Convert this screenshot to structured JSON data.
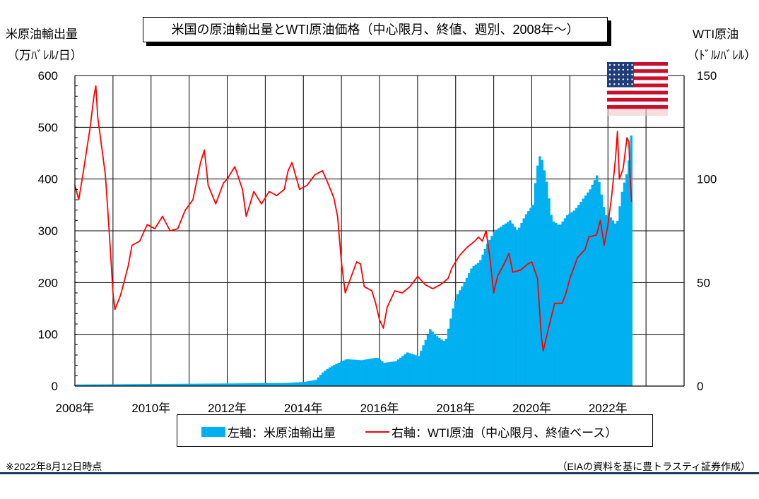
{
  "title": "米国の原油輸出量とWTI原油価格（中心限月、終値、週別、2008年～）",
  "left_axis": {
    "title_line1": "米原油輸出量",
    "title_line2": "（万ﾊﾞﾚﾙ/日）"
  },
  "right_axis": {
    "title_line1": "WTI原油",
    "title_line2": "（ﾄﾞﾙ/ﾊﾞﾚﾙ）"
  },
  "legend": {
    "bar_label": "左軸：米原油輸出量",
    "line_label": "右軸：WTI原油（中心限月、終値ベース）"
  },
  "footnote_left": "※2022年8月12日時点",
  "footnote_right": "（EIAの資料を基に豊トラスティ証券作成）",
  "flag_icon": "us-flag-icon",
  "colors": {
    "bars": "#00B0F0",
    "line": "#FF0000",
    "grid": "#000000"
  },
  "chart_data": {
    "type": "bar+line",
    "x_ticks": [
      "2008年",
      "2010年",
      "2012年",
      "2014年",
      "2016年",
      "2018年",
      "2020年",
      "2022年"
    ],
    "xlim": [
      2008,
      2024
    ],
    "left_ylim": [
      0,
      600
    ],
    "left_yticks": [
      "0",
      "100",
      "200",
      "300",
      "400",
      "500",
      "600"
    ],
    "right_ylim": [
      0,
      150
    ],
    "right_yticks": [
      "0",
      "50",
      "100",
      "150"
    ],
    "grid": true,
    "series": [
      {
        "name": "左軸：米原油輸出量",
        "axis": "left",
        "type": "bar",
        "points": [
          [
            2008.0,
            3
          ],
          [
            2010.0,
            4
          ],
          [
            2012.0,
            5
          ],
          [
            2013.5,
            6
          ],
          [
            2014.0,
            8
          ],
          [
            2014.3,
            12
          ],
          [
            2014.5,
            28
          ],
          [
            2014.7,
            38
          ],
          [
            2014.9,
            45
          ],
          [
            2015.1,
            52
          ],
          [
            2015.5,
            50
          ],
          [
            2015.9,
            55
          ],
          [
            2016.1,
            45
          ],
          [
            2016.4,
            48
          ],
          [
            2016.7,
            65
          ],
          [
            2017.0,
            58
          ],
          [
            2017.3,
            110
          ],
          [
            2017.5,
            95
          ],
          [
            2017.7,
            85
          ],
          [
            2017.9,
            150
          ],
          [
            2018.0,
            175
          ],
          [
            2018.2,
            200
          ],
          [
            2018.4,
            230
          ],
          [
            2018.6,
            240
          ],
          [
            2018.8,
            275
          ],
          [
            2019.0,
            300
          ],
          [
            2019.2,
            310
          ],
          [
            2019.4,
            320
          ],
          [
            2019.6,
            300
          ],
          [
            2019.8,
            330
          ],
          [
            2020.0,
            350
          ],
          [
            2020.1,
            420
          ],
          [
            2020.2,
            450
          ],
          [
            2020.35,
            400
          ],
          [
            2020.5,
            320
          ],
          [
            2020.7,
            310
          ],
          [
            2020.9,
            330
          ],
          [
            2021.1,
            340
          ],
          [
            2021.3,
            360
          ],
          [
            2021.5,
            380
          ],
          [
            2021.7,
            410
          ],
          [
            2021.9,
            330
          ],
          [
            2022.0,
            330
          ],
          [
            2022.2,
            310
          ],
          [
            2022.35,
            380
          ],
          [
            2022.5,
            420
          ],
          [
            2022.6,
            500
          ],
          [
            2022.62,
            495
          ]
        ]
      },
      {
        "name": "右軸：WTI原油（中心限月、終値ベース）",
        "axis": "right",
        "type": "line",
        "points": [
          [
            2008.0,
            97
          ],
          [
            2008.1,
            90
          ],
          [
            2008.2,
            101
          ],
          [
            2008.3,
            113
          ],
          [
            2008.4,
            125
          ],
          [
            2008.5,
            140
          ],
          [
            2008.55,
            145
          ],
          [
            2008.6,
            130
          ],
          [
            2008.7,
            116
          ],
          [
            2008.8,
            102
          ],
          [
            2008.9,
            75
          ],
          [
            2009.0,
            45
          ],
          [
            2009.05,
            37
          ],
          [
            2009.2,
            44
          ],
          [
            2009.4,
            58
          ],
          [
            2009.5,
            68
          ],
          [
            2009.7,
            70
          ],
          [
            2009.9,
            78
          ],
          [
            2010.1,
            76
          ],
          [
            2010.3,
            82
          ],
          [
            2010.5,
            75
          ],
          [
            2010.7,
            76
          ],
          [
            2010.9,
            85
          ],
          [
            2011.1,
            90
          ],
          [
            2011.3,
            108
          ],
          [
            2011.4,
            114
          ],
          [
            2011.5,
            97
          ],
          [
            2011.7,
            88
          ],
          [
            2011.9,
            98
          ],
          [
            2012.0,
            100
          ],
          [
            2012.2,
            106
          ],
          [
            2012.4,
            95
          ],
          [
            2012.5,
            82
          ],
          [
            2012.7,
            94
          ],
          [
            2012.9,
            88
          ],
          [
            2013.1,
            94
          ],
          [
            2013.3,
            92
          ],
          [
            2013.5,
            95
          ],
          [
            2013.6,
            104
          ],
          [
            2013.7,
            108
          ],
          [
            2013.9,
            95
          ],
          [
            2014.1,
            97
          ],
          [
            2014.3,
            102
          ],
          [
            2014.5,
            104
          ],
          [
            2014.6,
            100
          ],
          [
            2014.8,
            91
          ],
          [
            2014.9,
            82
          ],
          [
            2015.0,
            60
          ],
          [
            2015.1,
            45
          ],
          [
            2015.2,
            50
          ],
          [
            2015.4,
            60
          ],
          [
            2015.5,
            59
          ],
          [
            2015.6,
            48
          ],
          [
            2015.8,
            46
          ],
          [
            2015.9,
            40
          ],
          [
            2016.0,
            32
          ],
          [
            2016.1,
            28
          ],
          [
            2016.2,
            38
          ],
          [
            2016.4,
            46
          ],
          [
            2016.6,
            45
          ],
          [
            2016.8,
            48
          ],
          [
            2017.0,
            53
          ],
          [
            2017.2,
            49
          ],
          [
            2017.4,
            47
          ],
          [
            2017.6,
            49
          ],
          [
            2017.8,
            52
          ],
          [
            2017.9,
            57
          ],
          [
            2018.1,
            63
          ],
          [
            2018.3,
            67
          ],
          [
            2018.5,
            70
          ],
          [
            2018.6,
            72
          ],
          [
            2018.7,
            70
          ],
          [
            2018.8,
            75
          ],
          [
            2018.9,
            62
          ],
          [
            2019.0,
            45
          ],
          [
            2019.1,
            53
          ],
          [
            2019.3,
            60
          ],
          [
            2019.4,
            64
          ],
          [
            2019.5,
            55
          ],
          [
            2019.7,
            56
          ],
          [
            2019.9,
            59
          ],
          [
            2020.0,
            60
          ],
          [
            2020.15,
            52
          ],
          [
            2020.25,
            24
          ],
          [
            2020.3,
            17
          ],
          [
            2020.4,
            25
          ],
          [
            2020.6,
            40
          ],
          [
            2020.8,
            40
          ],
          [
            2020.9,
            45
          ],
          [
            2021.0,
            52
          ],
          [
            2021.2,
            62
          ],
          [
            2021.4,
            66
          ],
          [
            2021.5,
            72
          ],
          [
            2021.7,
            73
          ],
          [
            2021.8,
            80
          ],
          [
            2021.9,
            68
          ],
          [
            2022.0,
            78
          ],
          [
            2022.1,
            92
          ],
          [
            2022.2,
            110
          ],
          [
            2022.25,
            123
          ],
          [
            2022.3,
            100
          ],
          [
            2022.4,
            105
          ],
          [
            2022.5,
            120
          ],
          [
            2022.55,
            118
          ],
          [
            2022.58,
            102
          ],
          [
            2022.62,
            89
          ]
        ]
      }
    ]
  }
}
